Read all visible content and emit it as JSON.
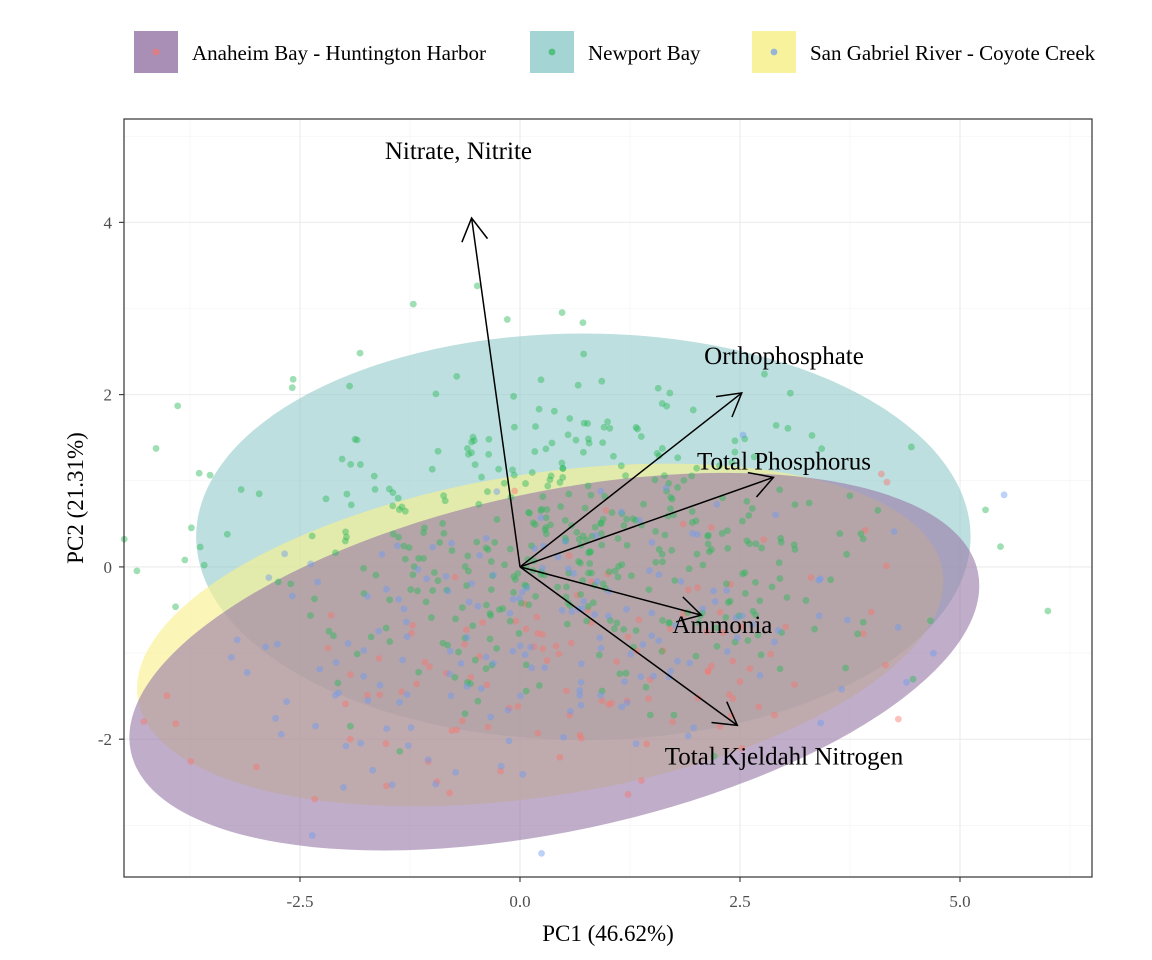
{
  "chart_data": {
    "type": "scatter",
    "subtype": "pca-biplot",
    "xlabel": "PC1 (46.62%)",
    "ylabel": "PC2 (21.31%)",
    "xlim": [
      -4.5,
      6.5
    ],
    "ylim": [
      -3.6,
      5.2
    ],
    "x_ticks": [
      "-2.5",
      "0.0",
      "2.5",
      "5.0"
    ],
    "y_ticks": [
      "-2",
      "0",
      "2",
      "4"
    ],
    "grid": true,
    "legend_position": "top",
    "series": [
      {
        "name": "Anaheim Bay - Huntington Harbor",
        "color": "#440154",
        "ellipse_fill": "#9a7aa8",
        "point_color": "#f8766d",
        "ellipse": {
          "cx": 0.39,
          "cy": -1.1,
          "rx": 4.92,
          "ry": 1.97,
          "angle_deg": 12
        }
      },
      {
        "name": "Newport Bay",
        "color": "#21908c",
        "ellipse_fill": "#94cccc",
        "point_color": "#2bb858",
        "ellipse": {
          "cx": 0.72,
          "cy": 0.35,
          "rx": 4.4,
          "ry": 2.36,
          "angle_deg": 0
        }
      },
      {
        "name": "San Gabriel River - Coyote Creek",
        "color": "#fde725",
        "ellipse_fill": "#f8f08c",
        "point_color": "#6c9cf0",
        "ellipse": {
          "cx": 0.23,
          "cy": -0.79,
          "rx": 4.63,
          "ry": 1.87,
          "angle_deg": 9
        }
      }
    ],
    "loadings": [
      {
        "name": "Nitrate, Nitrite",
        "x": -0.55,
        "y": 4.05
      },
      {
        "name": "Orthophosphate",
        "x": 2.52,
        "y": 2.02
      },
      {
        "name": "Total Phosphorus",
        "x": 2.88,
        "y": 1.04
      },
      {
        "name": "Ammonia",
        "x": 2.06,
        "y": -0.56
      },
      {
        "name": "Total Kjeldahl Nitrogen",
        "x": 2.47,
        "y": -1.84
      }
    ],
    "loading_label_positions": [
      {
        "x": -0.7,
        "y": 4.8
      },
      {
        "x": 3.0,
        "y": 2.42
      },
      {
        "x": 3.0,
        "y": 1.2
      },
      {
        "x": 2.3,
        "y": -0.7
      },
      {
        "x": 3.0,
        "y": -2.23
      }
    ]
  }
}
